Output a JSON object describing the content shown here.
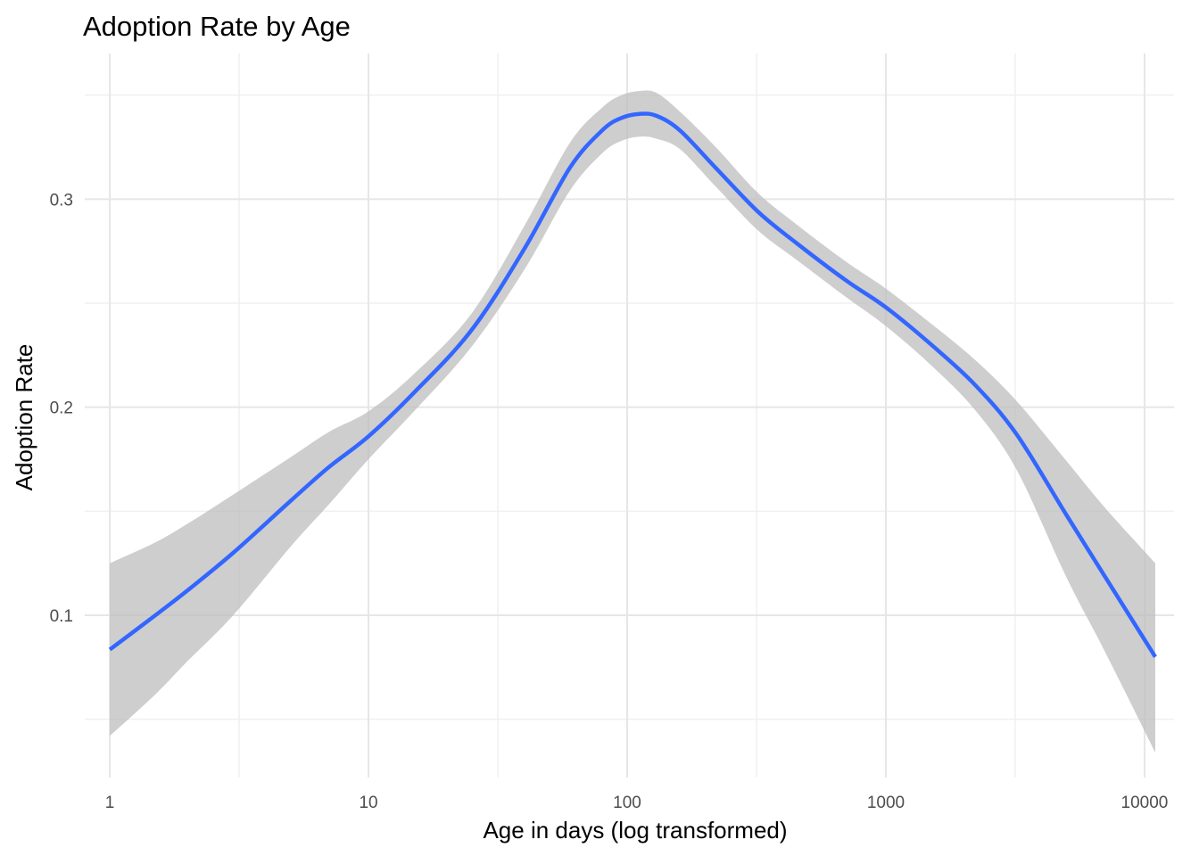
{
  "chart_data": {
    "type": "line",
    "title": "Adoption Rate by Age",
    "xlabel": "Age in days (log transformed)",
    "ylabel": "Adoption Rate",
    "x_scale": "log10",
    "xlim": [
      0.8,
      13000
    ],
    "ylim": [
      0.022,
      0.37
    ],
    "x_ticks": [
      1,
      10,
      100,
      1000,
      10000
    ],
    "x_tick_labels": [
      "1",
      "10",
      "100",
      "1000",
      "10000"
    ],
    "y_ticks": [
      0.1,
      0.2,
      0.3
    ],
    "y_tick_labels": [
      "0.1",
      "0.2",
      "0.3"
    ],
    "grid": true,
    "colors": {
      "line": "#3366ff",
      "ribbon": "#bdbdbd"
    },
    "series": [
      {
        "x": [
          1,
          1.5,
          2,
          3,
          5,
          7,
          10,
          15,
          25,
          40,
          60,
          80,
          95,
          112,
          130,
          160,
          220,
          320,
          450,
          700,
          1000,
          1500,
          2200,
          3200,
          5000,
          7000,
          11000
        ],
        "y": [
          0.0835,
          0.1,
          0.112,
          0.13,
          0.155,
          0.171,
          0.186,
          0.207,
          0.237,
          0.276,
          0.315,
          0.333,
          0.339,
          0.341,
          0.34,
          0.333,
          0.315,
          0.294,
          0.279,
          0.261,
          0.248,
          0.23,
          0.211,
          0.187,
          0.148,
          0.119,
          0.08
        ],
        "lower": [
          0.042,
          0.062,
          0.078,
          0.1,
          0.133,
          0.153,
          0.175,
          0.198,
          0.229,
          0.266,
          0.304,
          0.322,
          0.328,
          0.33,
          0.329,
          0.324,
          0.306,
          0.285,
          0.271,
          0.253,
          0.239,
          0.22,
          0.199,
          0.17,
          0.118,
          0.083,
          0.034
        ],
        "upper": [
          0.125,
          0.135,
          0.144,
          0.158,
          0.176,
          0.188,
          0.198,
          0.216,
          0.245,
          0.287,
          0.327,
          0.344,
          0.35,
          0.352,
          0.351,
          0.342,
          0.325,
          0.303,
          0.288,
          0.27,
          0.257,
          0.24,
          0.223,
          0.203,
          0.174,
          0.152,
          0.125
        ]
      }
    ]
  }
}
